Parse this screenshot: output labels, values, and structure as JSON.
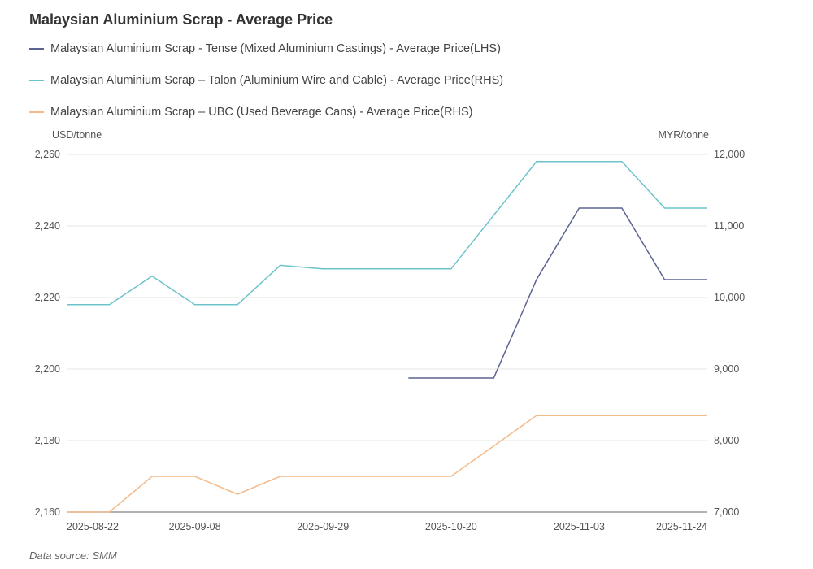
{
  "chart_data": {
    "type": "line",
    "title": "Malaysian Aluminium Scrap - Average Price",
    "left_axis": {
      "label": "USD/tonne",
      "range": [
        2160,
        2260
      ],
      "ticks": [
        2160,
        2180,
        2200,
        2220,
        2240,
        2260
      ],
      "tick_labels": [
        "2,160",
        "2,180",
        "2,200",
        "2,220",
        "2,240",
        "2,260"
      ]
    },
    "right_axis": {
      "label": "MYR/tonne",
      "range": [
        7000,
        12000
      ],
      "ticks": [
        7000,
        8000,
        9000,
        10000,
        11000,
        12000
      ],
      "tick_labels": [
        "7,000",
        "8,000",
        "9,000",
        "10,000",
        "11,000",
        "12,000"
      ]
    },
    "x_tick_labels": [
      "2025-08-22",
      "",
      "",
      "2025-09-08",
      "",
      "",
      "2025-09-29",
      "",
      "",
      "2025-10-20",
      "",
      "",
      "2025-11-03",
      "",
      "",
      "2025-11-24"
    ],
    "grid": true,
    "legend_placement": "top-left",
    "series": [
      {
        "name": "Malaysian Aluminium Scrap - Tense (Mixed Aluminium Castings) - Average Price(LHS)",
        "axis": "left",
        "color": "#5d6390",
        "values": [
          null,
          null,
          null,
          null,
          null,
          null,
          null,
          null,
          2197.5,
          2197.5,
          2197.5,
          2225,
          2245,
          2245,
          2225,
          2225
        ]
      },
      {
        "name": "Malaysian Aluminium Scrap – Talon (Aluminium Wire and Cable) - Average Price(RHS)",
        "axis": "right",
        "color": "#6cc3c9",
        "values": [
          9900,
          9900,
          10300,
          9900,
          9900,
          10450,
          10400,
          10400,
          10400,
          10400,
          11150,
          11900,
          11900,
          11900,
          11250,
          11250
        ]
      },
      {
        "name": "Malaysian Aluminium Scrap – UBC (Used Beverage Cans) - Average Price(RHS)",
        "axis": "right",
        "color": "#f2bb8c",
        "values": [
          7000,
          7000,
          7500,
          7500,
          7250,
          7500,
          7500,
          7500,
          7500,
          7500,
          7925,
          8350,
          8350,
          8350,
          8350,
          8350
        ]
      }
    ],
    "source": "Data source:  SMM"
  }
}
